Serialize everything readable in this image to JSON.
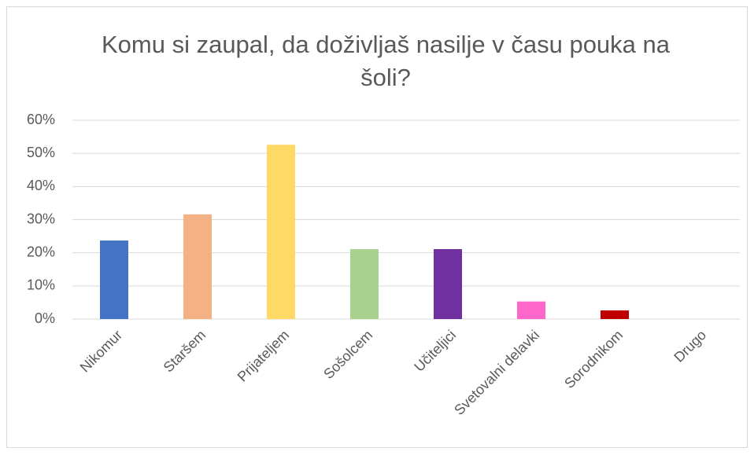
{
  "chart_data": {
    "type": "bar",
    "title": "Komu si zaupal, da doživljaš nasilje v času pouka na šoli?",
    "categories": [
      "Nikomur",
      "Staršem",
      "Prijateljem",
      "Sošolcem",
      "Učiteljici",
      "Svetovalni delavki",
      "Sorodnikom",
      "Drugo"
    ],
    "values": [
      23.7,
      31.6,
      52.6,
      21.1,
      21.1,
      5.3,
      2.6,
      0
    ],
    "colors": [
      "#4472c4",
      "#f4b183",
      "#ffd966",
      "#a9d18e",
      "#7030a0",
      "#ff66cc",
      "#c00000",
      "#70ad47"
    ],
    "ylim": [
      0,
      60
    ],
    "yticks": [
      {
        "value": 0,
        "label": "0%"
      },
      {
        "value": 10,
        "label": "10%"
      },
      {
        "value": 20,
        "label": "20%"
      },
      {
        "value": 30,
        "label": "30%"
      },
      {
        "value": 40,
        "label": "40%"
      },
      {
        "value": 50,
        "label": "50%"
      },
      {
        "value": 60,
        "label": "60%"
      }
    ],
    "grid": true
  }
}
